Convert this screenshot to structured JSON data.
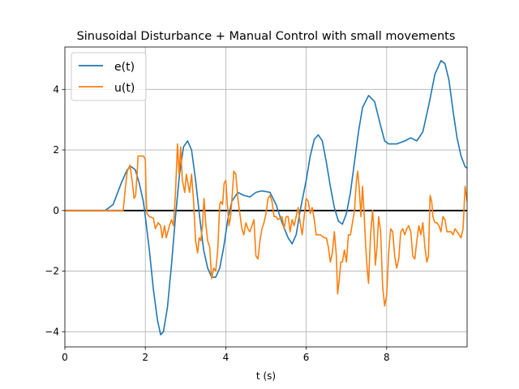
{
  "chart_data": {
    "type": "line",
    "title": "Sinusoidal Disturbance + Manual Control with small movements",
    "xlabel": "t (s)",
    "ylabel": "",
    "xlim": [
      0,
      10
    ],
    "ylim": [
      -4.5,
      5.4
    ],
    "xticks": [
      0,
      2,
      4,
      6,
      8
    ],
    "xtick_labels": [
      "0",
      "2",
      "4",
      "6",
      "8"
    ],
    "yticks": [
      -4,
      -2,
      0,
      2,
      4
    ],
    "ytick_labels": [
      "−4",
      "−2",
      "0",
      "2",
      "4"
    ],
    "grid": true,
    "legend_position": "top-left",
    "reference_line": {
      "y": 0,
      "color": "#000000"
    },
    "series": [
      {
        "name": "e(t)",
        "color": "#1f77b4",
        "points": [
          [
            0,
            0
          ],
          [
            1.0,
            0
          ],
          [
            1.2,
            0.2
          ],
          [
            1.4,
            0.9
          ],
          [
            1.55,
            1.35
          ],
          [
            1.65,
            1.45
          ],
          [
            1.75,
            1.35
          ],
          [
            1.85,
            0.9
          ],
          [
            1.95,
            0.3
          ],
          [
            2.0,
            -0.2
          ],
          [
            2.1,
            -1.3
          ],
          [
            2.2,
            -2.6
          ],
          [
            2.3,
            -3.6
          ],
          [
            2.38,
            -4.1
          ],
          [
            2.45,
            -4.0
          ],
          [
            2.55,
            -3.2
          ],
          [
            2.65,
            -1.8
          ],
          [
            2.75,
            -0.2
          ],
          [
            2.85,
            1.2
          ],
          [
            2.95,
            2.1
          ],
          [
            3.05,
            2.3
          ],
          [
            3.15,
            2.0
          ],
          [
            3.25,
            1.0
          ],
          [
            3.35,
            -0.2
          ],
          [
            3.45,
            -1.3
          ],
          [
            3.55,
            -1.9
          ],
          [
            3.65,
            -2.2
          ],
          [
            3.75,
            -2.2
          ],
          [
            3.85,
            -1.9
          ],
          [
            3.95,
            -1.2
          ],
          [
            4.05,
            -0.3
          ],
          [
            4.15,
            0.3
          ],
          [
            4.3,
            0.6
          ],
          [
            4.45,
            0.5
          ],
          [
            4.6,
            0.45
          ],
          [
            4.75,
            0.6
          ],
          [
            4.9,
            0.65
          ],
          [
            5.1,
            0.6
          ],
          [
            5.25,
            0.2
          ],
          [
            5.4,
            -0.4
          ],
          [
            5.55,
            -0.9
          ],
          [
            5.65,
            -1.1
          ],
          [
            5.75,
            -0.8
          ],
          [
            5.85,
            0.0
          ],
          [
            6.0,
            1.0
          ],
          [
            6.1,
            1.8
          ],
          [
            6.2,
            2.35
          ],
          [
            6.3,
            2.5
          ],
          [
            6.4,
            2.3
          ],
          [
            6.5,
            1.6
          ],
          [
            6.6,
            0.8
          ],
          [
            6.7,
            0.1
          ],
          [
            6.8,
            -0.35
          ],
          [
            6.9,
            -0.45
          ],
          [
            7.0,
            -0.1
          ],
          [
            7.1,
            0.6
          ],
          [
            7.2,
            1.6
          ],
          [
            7.3,
            2.6
          ],
          [
            7.4,
            3.4
          ],
          [
            7.55,
            3.8
          ],
          [
            7.7,
            3.6
          ],
          [
            7.85,
            2.8
          ],
          [
            7.95,
            2.3
          ],
          [
            8.05,
            2.2
          ],
          [
            8.25,
            2.2
          ],
          [
            8.45,
            2.3
          ],
          [
            8.6,
            2.4
          ],
          [
            8.75,
            2.3
          ],
          [
            8.9,
            2.6
          ],
          [
            9.05,
            3.5
          ],
          [
            9.2,
            4.5
          ],
          [
            9.35,
            4.95
          ],
          [
            9.45,
            4.85
          ],
          [
            9.55,
            4.3
          ],
          [
            9.65,
            3.3
          ],
          [
            9.75,
            2.4
          ],
          [
            9.85,
            1.8
          ],
          [
            9.95,
            1.45
          ],
          [
            10.0,
            1.4
          ]
        ]
      },
      {
        "name": "u(t)",
        "color": "#ff7f0e",
        "points": [
          [
            0,
            0
          ],
          [
            1.45,
            0
          ],
          [
            1.5,
            0.7
          ],
          [
            1.55,
            1.3
          ],
          [
            1.62,
            1.5
          ],
          [
            1.68,
            0.9
          ],
          [
            1.72,
            0.4
          ],
          [
            1.76,
            0.5
          ],
          [
            1.8,
            1.3
          ],
          [
            1.82,
            1.8
          ],
          [
            1.95,
            1.8
          ],
          [
            2.0,
            1.7
          ],
          [
            2.02,
            0.5
          ],
          [
            2.04,
            -0.1
          ],
          [
            2.1,
            -0.2
          ],
          [
            2.2,
            -0.25
          ],
          [
            2.25,
            -0.6
          ],
          [
            2.32,
            -0.4
          ],
          [
            2.38,
            -0.5
          ],
          [
            2.42,
            -0.9
          ],
          [
            2.48,
            -0.5
          ],
          [
            2.52,
            -0.9
          ],
          [
            2.6,
            -0.5
          ],
          [
            2.65,
            -0.3
          ],
          [
            2.7,
            -0.5
          ],
          [
            2.75,
            0.6
          ],
          [
            2.8,
            2.2
          ],
          [
            2.84,
            1.2
          ],
          [
            2.88,
            2.1
          ],
          [
            2.92,
            1.0
          ],
          [
            2.98,
            0.6
          ],
          [
            3.02,
            1.2
          ],
          [
            3.06,
            0.9
          ],
          [
            3.1,
            0.6
          ],
          [
            3.15,
            1.2
          ],
          [
            3.2,
            0.3
          ],
          [
            3.25,
            -1.0
          ],
          [
            3.3,
            -1.4
          ],
          [
            3.34,
            -0.9
          ],
          [
            3.38,
            -1.0
          ],
          [
            3.42,
            -0.5
          ],
          [
            3.46,
            0.4
          ],
          [
            3.5,
            -0.4
          ],
          [
            3.55,
            -1.0
          ],
          [
            3.6,
            -1.2
          ],
          [
            3.65,
            -2.25
          ],
          [
            3.7,
            -1.9
          ],
          [
            3.75,
            -2.0
          ],
          [
            3.8,
            -1.3
          ],
          [
            3.85,
            0.2
          ],
          [
            3.88,
            0.3
          ],
          [
            3.92,
            0.2
          ],
          [
            3.96,
            0.9
          ],
          [
            4.0,
            1.0
          ],
          [
            4.04,
            0.2
          ],
          [
            4.08,
            -0.5
          ],
          [
            4.12,
            -0.2
          ],
          [
            4.16,
            0.5
          ],
          [
            4.2,
            1.3
          ],
          [
            4.25,
            1.2
          ],
          [
            4.3,
            0.4
          ],
          [
            4.35,
            -0.1
          ],
          [
            4.4,
            -0.6
          ],
          [
            4.45,
            -0.8
          ],
          [
            4.5,
            -0.4
          ],
          [
            4.55,
            -0.6
          ],
          [
            4.6,
            -0.7
          ],
          [
            4.65,
            -0.5
          ],
          [
            4.7,
            -0.3
          ],
          [
            4.75,
            -1.5
          ],
          [
            4.8,
            -1.6
          ],
          [
            4.85,
            -1.0
          ],
          [
            4.9,
            -0.6
          ],
          [
            4.95,
            -0.4
          ],
          [
            5.0,
            -0.1
          ],
          [
            5.05,
            0.4
          ],
          [
            5.1,
            0.5
          ],
          [
            5.15,
            0.3
          ],
          [
            5.2,
            -0.2
          ],
          [
            5.25,
            -0.2
          ],
          [
            5.3,
            -0.3
          ],
          [
            5.4,
            -0.2
          ],
          [
            5.45,
            -0.6
          ],
          [
            5.5,
            -0.2
          ],
          [
            5.55,
            -0.2
          ],
          [
            5.6,
            -0.7
          ],
          [
            5.65,
            -0.3
          ],
          [
            5.7,
            -0.5
          ],
          [
            5.75,
            -0.2
          ],
          [
            5.8,
            0.1
          ],
          [
            5.85,
            -0.4
          ],
          [
            5.9,
            -0.8
          ],
          [
            5.95,
            -0.2
          ],
          [
            6.0,
            0.4
          ],
          [
            6.05,
            0.3
          ],
          [
            6.1,
            -0.1
          ],
          [
            6.15,
            0.1
          ],
          [
            6.2,
            -0.3
          ],
          [
            6.25,
            -0.8
          ],
          [
            6.35,
            -0.8
          ],
          [
            6.45,
            -0.9
          ],
          [
            6.5,
            -0.9
          ],
          [
            6.55,
            -1.2
          ],
          [
            6.6,
            -1.7
          ],
          [
            6.65,
            -1.4
          ],
          [
            6.7,
            -0.7
          ],
          [
            6.75,
            -1.5
          ],
          [
            6.78,
            -2.75
          ],
          [
            6.82,
            -2.3
          ],
          [
            6.86,
            -1.7
          ],
          [
            6.9,
            -1.7
          ],
          [
            6.95,
            -1.3
          ],
          [
            7.0,
            -1.7
          ],
          [
            7.05,
            -0.8
          ],
          [
            7.1,
            -0.8
          ],
          [
            7.15,
            -0.4
          ],
          [
            7.2,
            0.0
          ],
          [
            7.25,
            1.0
          ],
          [
            7.28,
            1.3
          ],
          [
            7.32,
            0.7
          ],
          [
            7.36,
            -0.2
          ],
          [
            7.4,
            0.8
          ],
          [
            7.44,
            -0.1
          ],
          [
            7.48,
            -1.2
          ],
          [
            7.52,
            -2.0
          ],
          [
            7.55,
            -2.4
          ],
          [
            7.6,
            -0.8
          ],
          [
            7.65,
            0.0
          ],
          [
            7.68,
            -0.6
          ],
          [
            7.72,
            -1.8
          ],
          [
            7.76,
            -1.2
          ],
          [
            7.8,
            -0.2
          ],
          [
            7.85,
            -0.7
          ],
          [
            7.9,
            -2.5
          ],
          [
            7.95,
            -3.15
          ],
          [
            8.0,
            -2.8
          ],
          [
            8.05,
            -1.4
          ],
          [
            8.1,
            -0.6
          ],
          [
            8.15,
            -0.7
          ],
          [
            8.2,
            -1.5
          ],
          [
            8.25,
            -1.9
          ],
          [
            8.3,
            -1.6
          ],
          [
            8.35,
            -0.7
          ],
          [
            8.4,
            -0.6
          ],
          [
            8.45,
            -0.8
          ],
          [
            8.5,
            -0.6
          ],
          [
            8.55,
            -0.5
          ],
          [
            8.6,
            -0.7
          ],
          [
            8.65,
            -1.5
          ],
          [
            8.7,
            -1.6
          ],
          [
            8.75,
            -1.0
          ],
          [
            8.8,
            -0.5
          ],
          [
            8.85,
            -0.8
          ],
          [
            8.9,
            -0.4
          ],
          [
            8.95,
            -1.2
          ],
          [
            9.0,
            -1.7
          ],
          [
            9.04,
            -1.5
          ],
          [
            9.08,
            0.5
          ],
          [
            9.12,
            0.3
          ],
          [
            9.15,
            -0.2
          ],
          [
            9.2,
            -0.4
          ],
          [
            9.25,
            -0.4
          ],
          [
            9.3,
            -0.5
          ],
          [
            9.35,
            -0.7
          ],
          [
            9.4,
            -0.2
          ],
          [
            9.45,
            -0.3
          ],
          [
            9.5,
            -0.7
          ],
          [
            9.55,
            -0.7
          ],
          [
            9.6,
            -0.7
          ],
          [
            9.65,
            -0.8
          ],
          [
            9.7,
            -0.6
          ],
          [
            9.75,
            -0.7
          ],
          [
            9.8,
            -0.8
          ],
          [
            9.85,
            -0.9
          ],
          [
            9.9,
            -0.6
          ],
          [
            9.95,
            0.8
          ],
          [
            10.0,
            0.3
          ]
        ]
      }
    ]
  }
}
